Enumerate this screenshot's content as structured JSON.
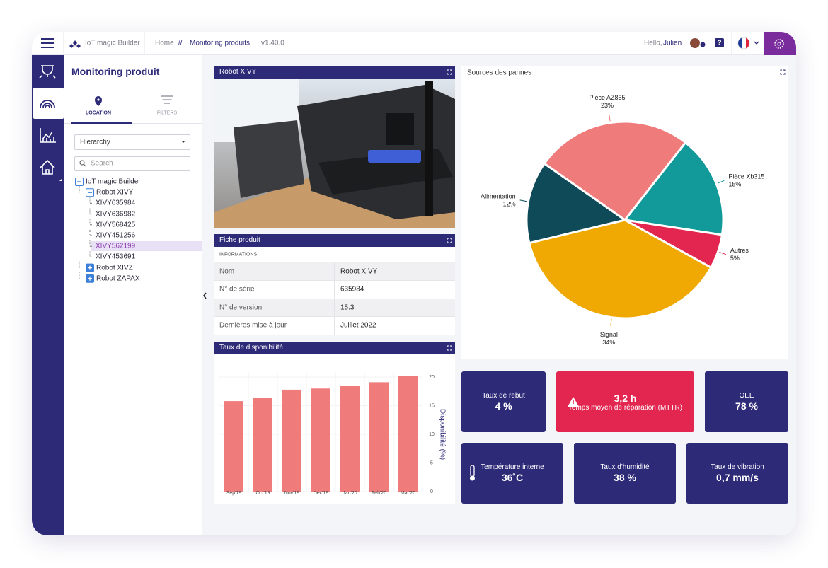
{
  "header": {
    "brand": "IoT magic Builder",
    "breadcrumb": [
      "Home",
      "//",
      "Monitoring produits"
    ],
    "version": "v1.40.0",
    "greeting": "Hello,",
    "user": "Julien"
  },
  "sidebar": {
    "title": "Monitoring produit",
    "tabs": [
      "LOCATION",
      "FILTERS"
    ],
    "select": "Hierarchy",
    "search": "Search",
    "tree": [
      {
        "label": "IoT magic Builder",
        "level": 0,
        "expanded": true
      },
      {
        "label": "Robot XIVY",
        "level": 1,
        "expanded": true
      },
      {
        "label": "XIVY635984",
        "level": 2
      },
      {
        "label": "XIVY636982",
        "level": 2
      },
      {
        "label": "XIVY568425",
        "level": 2
      },
      {
        "label": "XIVY451256",
        "level": 2
      },
      {
        "label": "XIVY562199",
        "level": 2,
        "selected": true
      },
      {
        "label": "XIVY453691",
        "level": 2
      },
      {
        "label": "Robot XIVZ",
        "level": 1,
        "expanded": false
      },
      {
        "label": "Robot ZAPAX",
        "level": 1,
        "expanded": false
      }
    ]
  },
  "robot_panel": {
    "title": "Robot XIVY"
  },
  "product_sheet": {
    "title": "Fiche produit",
    "section": "INFORMATIONS",
    "rows": [
      [
        "Nom",
        "Robot XIVY"
      ],
      [
        "N° de série",
        "635984"
      ],
      [
        "N° de version",
        "15.3"
      ],
      [
        "Dernières mise à jour",
        "Juillet 2022"
      ]
    ]
  },
  "chart_data": [
    {
      "type": "bar",
      "title": "Taux de disponibilité",
      "y_label": "Disponibilité (%)",
      "categories": [
        "Sep'19",
        "Oct'19",
        "Nov'19",
        "Dec'19",
        "Jan'20",
        "Feb'20",
        "Mar'20"
      ],
      "values": [
        15.8,
        16.4,
        17.8,
        18,
        18.5,
        19.1,
        20.2
      ],
      "color": "#f07b7b",
      "ylim": [
        0,
        21
      ],
      "yticks": [
        0,
        5,
        10,
        15,
        20
      ],
      "grid": true
    },
    {
      "type": "pie",
      "title": "Sources des pannes",
      "categories": [
        "Pièce AZ865",
        "Pièce Xb315",
        "Autres",
        "Signal",
        "Alimentation"
      ],
      "values": [
        23,
        15,
        5,
        34,
        12
      ],
      "value_labels": [
        "23%",
        "15%",
        "5%",
        "34%",
        "12%"
      ],
      "colors": [
        "#f07b7b",
        "#12999a",
        "#e2264f",
        "#f0a902",
        "#0e4a58"
      ]
    }
  ],
  "kpis": [
    [
      {
        "label": "Taux de rebut",
        "value": "4 %",
        "color": "#2d2a78"
      },
      {
        "value": "3,2 h",
        "label": "Temps moyen de réparation (MTTR)",
        "color": "#e2264f",
        "icon": "warning"
      },
      {
        "label": "OEE",
        "value": "78 %",
        "color": "#2d2a78"
      }
    ],
    [
      {
        "label": "Température interne",
        "value": "36˚C",
        "color": "#2d2a78",
        "icon": "thermometer"
      },
      {
        "label": "Taux d'humidité",
        "value": "38 %",
        "color": "#2d2a78"
      },
      {
        "label": "Taux de vibration",
        "value": "0,7 mm/s",
        "color": "#2d2a78"
      }
    ]
  ]
}
